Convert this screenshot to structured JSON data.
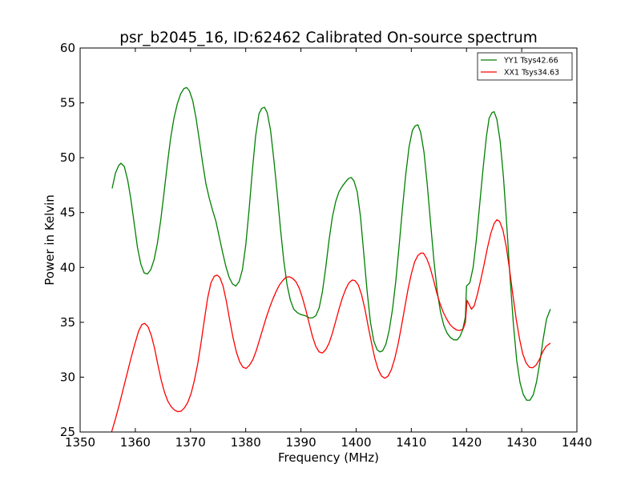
{
  "chart_data": {
    "type": "line",
    "title": "psr_b2045_16, ID:62462 Calibrated On-source spectrum",
    "xlabel": "Frequency (MHz)",
    "ylabel": "Power in Kelvin",
    "xlim": [
      1350,
      1440
    ],
    "ylim": [
      25,
      60
    ],
    "xticks": [
      1350,
      1360,
      1370,
      1380,
      1390,
      1400,
      1410,
      1420,
      1430,
      1440
    ],
    "yticks": [
      25,
      30,
      35,
      40,
      45,
      50,
      55,
      60
    ],
    "xtick_labels": [
      "1350",
      "1360",
      "1370",
      "1380",
      "1390",
      "1400",
      "1410",
      "1420",
      "1430",
      "1440"
    ],
    "ytick_labels": [
      "25",
      "30",
      "35",
      "40",
      "45",
      "50",
      "55",
      "60"
    ],
    "grid": false,
    "legend_position": "top-right",
    "series": [
      {
        "name": "YY1 Tsys42.66",
        "color": "#008000",
        "points": [
          [
            1355.8,
            47.2
          ],
          [
            1356.4,
            48.6
          ],
          [
            1357.0,
            49.3
          ],
          [
            1357.4,
            49.5
          ],
          [
            1358.0,
            49.2
          ],
          [
            1358.6,
            48.0
          ],
          [
            1359.2,
            46.2
          ],
          [
            1359.8,
            44.0
          ],
          [
            1360.4,
            41.8
          ],
          [
            1361.0,
            40.3
          ],
          [
            1361.6,
            39.5
          ],
          [
            1362.2,
            39.4
          ],
          [
            1362.8,
            39.8
          ],
          [
            1363.4,
            40.7
          ],
          [
            1364.0,
            42.2
          ],
          [
            1364.6,
            44.3
          ],
          [
            1365.2,
            46.8
          ],
          [
            1365.8,
            49.4
          ],
          [
            1366.4,
            51.8
          ],
          [
            1367.0,
            53.6
          ],
          [
            1367.6,
            54.9
          ],
          [
            1368.2,
            55.8
          ],
          [
            1368.8,
            56.3
          ],
          [
            1369.3,
            56.4
          ],
          [
            1369.8,
            56.1
          ],
          [
            1370.4,
            55.2
          ],
          [
            1371.0,
            53.6
          ],
          [
            1371.6,
            51.6
          ],
          [
            1372.2,
            49.5
          ],
          [
            1372.8,
            47.6
          ],
          [
            1373.4,
            46.3
          ],
          [
            1374.0,
            45.2
          ],
          [
            1374.6,
            44.2
          ],
          [
            1375.2,
            42.8
          ],
          [
            1375.8,
            41.4
          ],
          [
            1376.4,
            40.1
          ],
          [
            1377.0,
            39.1
          ],
          [
            1377.6,
            38.5
          ],
          [
            1378.2,
            38.3
          ],
          [
            1378.8,
            38.7
          ],
          [
            1379.4,
            39.8
          ],
          [
            1380.0,
            42.0
          ],
          [
            1380.6,
            45.2
          ],
          [
            1381.2,
            48.8
          ],
          [
            1381.8,
            52.0
          ],
          [
            1382.4,
            54.0
          ],
          [
            1382.9,
            54.5
          ],
          [
            1383.4,
            54.6
          ],
          [
            1383.9,
            54.1
          ],
          [
            1384.5,
            52.5
          ],
          [
            1385.1,
            49.8
          ],
          [
            1385.7,
            46.8
          ],
          [
            1386.3,
            43.5
          ],
          [
            1386.9,
            40.6
          ],
          [
            1387.5,
            38.4
          ],
          [
            1388.1,
            37.0
          ],
          [
            1388.7,
            36.2
          ],
          [
            1389.3,
            35.9
          ],
          [
            1390.0,
            35.7
          ],
          [
            1390.8,
            35.6
          ],
          [
            1391.5,
            35.4
          ],
          [
            1392.1,
            35.4
          ],
          [
            1392.7,
            35.6
          ],
          [
            1393.3,
            36.3
          ],
          [
            1393.9,
            37.8
          ],
          [
            1394.5,
            40.0
          ],
          [
            1395.1,
            42.5
          ],
          [
            1395.7,
            44.6
          ],
          [
            1396.3,
            46.0
          ],
          [
            1396.9,
            46.9
          ],
          [
            1397.5,
            47.4
          ],
          [
            1398.1,
            47.8
          ],
          [
            1398.6,
            48.1
          ],
          [
            1399.1,
            48.2
          ],
          [
            1399.6,
            47.9
          ],
          [
            1400.2,
            46.9
          ],
          [
            1400.8,
            44.6
          ],
          [
            1401.4,
            41.2
          ],
          [
            1402.0,
            37.8
          ],
          [
            1402.6,
            35.0
          ],
          [
            1403.2,
            33.3
          ],
          [
            1403.8,
            32.5
          ],
          [
            1404.3,
            32.3
          ],
          [
            1404.8,
            32.4
          ],
          [
            1405.4,
            33.0
          ],
          [
            1406.0,
            34.3
          ],
          [
            1406.6,
            36.2
          ],
          [
            1407.2,
            38.8
          ],
          [
            1407.8,
            42.0
          ],
          [
            1408.4,
            45.4
          ],
          [
            1409.0,
            48.5
          ],
          [
            1409.6,
            51.0
          ],
          [
            1410.2,
            52.5
          ],
          [
            1410.7,
            52.9
          ],
          [
            1411.2,
            53.0
          ],
          [
            1411.7,
            52.3
          ],
          [
            1412.3,
            50.5
          ],
          [
            1412.9,
            47.5
          ],
          [
            1413.5,
            44.0
          ],
          [
            1414.1,
            40.6
          ],
          [
            1414.7,
            37.8
          ],
          [
            1415.3,
            35.9
          ],
          [
            1415.9,
            34.7
          ],
          [
            1416.5,
            34.0
          ],
          [
            1417.1,
            33.6
          ],
          [
            1417.7,
            33.4
          ],
          [
            1418.3,
            33.4
          ],
          [
            1418.8,
            33.7
          ],
          [
            1419.3,
            34.3
          ],
          [
            1419.8,
            35.5
          ],
          [
            1420.0,
            38.3
          ],
          [
            1420.6,
            38.6
          ],
          [
            1421.2,
            40.0
          ],
          [
            1421.8,
            42.6
          ],
          [
            1422.4,
            45.8
          ],
          [
            1423.0,
            49.0
          ],
          [
            1423.6,
            51.9
          ],
          [
            1424.1,
            53.6
          ],
          [
            1424.6,
            54.1
          ],
          [
            1425.0,
            54.2
          ],
          [
            1425.5,
            53.5
          ],
          [
            1426.1,
            51.5
          ],
          [
            1426.7,
            48.2
          ],
          [
            1427.3,
            43.8
          ],
          [
            1427.9,
            39.0
          ],
          [
            1428.5,
            34.8
          ],
          [
            1429.1,
            31.5
          ],
          [
            1429.7,
            29.5
          ],
          [
            1430.3,
            28.4
          ],
          [
            1430.9,
            27.9
          ],
          [
            1431.5,
            27.9
          ],
          [
            1432.1,
            28.4
          ],
          [
            1432.7,
            29.6
          ],
          [
            1433.3,
            31.4
          ],
          [
            1433.9,
            33.5
          ],
          [
            1434.5,
            35.3
          ],
          [
            1435.2,
            36.2
          ]
        ]
      },
      {
        "name": "XX1 Tsys34.63",
        "color": "#ff0000",
        "points": [
          [
            1355.7,
            25.0
          ],
          [
            1356.4,
            26.2
          ],
          [
            1357.1,
            27.5
          ],
          [
            1357.8,
            28.9
          ],
          [
            1358.5,
            30.3
          ],
          [
            1359.2,
            31.7
          ],
          [
            1359.9,
            33.0
          ],
          [
            1360.6,
            34.2
          ],
          [
            1361.2,
            34.8
          ],
          [
            1361.7,
            34.9
          ],
          [
            1362.3,
            34.6
          ],
          [
            1362.9,
            33.8
          ],
          [
            1363.5,
            32.6
          ],
          [
            1364.1,
            31.1
          ],
          [
            1364.7,
            29.7
          ],
          [
            1365.3,
            28.6
          ],
          [
            1365.9,
            27.8
          ],
          [
            1366.5,
            27.3
          ],
          [
            1367.1,
            27.0
          ],
          [
            1367.7,
            26.85
          ],
          [
            1368.3,
            26.9
          ],
          [
            1368.9,
            27.2
          ],
          [
            1369.5,
            27.7
          ],
          [
            1370.1,
            28.5
          ],
          [
            1370.7,
            29.7
          ],
          [
            1371.3,
            31.2
          ],
          [
            1371.9,
            33.1
          ],
          [
            1372.5,
            35.2
          ],
          [
            1373.1,
            37.2
          ],
          [
            1373.7,
            38.6
          ],
          [
            1374.3,
            39.2
          ],
          [
            1374.8,
            39.3
          ],
          [
            1375.3,
            39.1
          ],
          [
            1375.9,
            38.3
          ],
          [
            1376.5,
            36.9
          ],
          [
            1377.1,
            35.2
          ],
          [
            1377.7,
            33.6
          ],
          [
            1378.3,
            32.3
          ],
          [
            1378.9,
            31.4
          ],
          [
            1379.5,
            30.9
          ],
          [
            1380.1,
            30.8
          ],
          [
            1380.7,
            31.1
          ],
          [
            1381.3,
            31.6
          ],
          [
            1381.9,
            32.4
          ],
          [
            1382.5,
            33.4
          ],
          [
            1383.1,
            34.4
          ],
          [
            1383.7,
            35.4
          ],
          [
            1384.3,
            36.3
          ],
          [
            1384.9,
            37.1
          ],
          [
            1385.5,
            37.8
          ],
          [
            1386.1,
            38.4
          ],
          [
            1386.7,
            38.8
          ],
          [
            1387.3,
            39.1
          ],
          [
            1387.9,
            39.15
          ],
          [
            1388.5,
            39.0
          ],
          [
            1389.1,
            38.7
          ],
          [
            1389.7,
            38.1
          ],
          [
            1390.3,
            37.2
          ],
          [
            1390.9,
            36.1
          ],
          [
            1391.5,
            34.9
          ],
          [
            1392.1,
            33.7
          ],
          [
            1392.7,
            32.8
          ],
          [
            1393.3,
            32.3
          ],
          [
            1393.9,
            32.2
          ],
          [
            1394.5,
            32.5
          ],
          [
            1395.1,
            33.1
          ],
          [
            1395.7,
            34.0
          ],
          [
            1396.3,
            35.1
          ],
          [
            1396.9,
            36.2
          ],
          [
            1397.5,
            37.2
          ],
          [
            1398.1,
            38.0
          ],
          [
            1398.7,
            38.6
          ],
          [
            1399.3,
            38.85
          ],
          [
            1399.8,
            38.8
          ],
          [
            1400.4,
            38.4
          ],
          [
            1401.0,
            37.5
          ],
          [
            1401.6,
            36.2
          ],
          [
            1402.2,
            34.6
          ],
          [
            1402.8,
            33.1
          ],
          [
            1403.4,
            31.7
          ],
          [
            1404.0,
            30.7
          ],
          [
            1404.6,
            30.1
          ],
          [
            1405.2,
            29.9
          ],
          [
            1405.8,
            30.1
          ],
          [
            1406.4,
            30.7
          ],
          [
            1407.0,
            31.7
          ],
          [
            1407.6,
            33.0
          ],
          [
            1408.2,
            34.6
          ],
          [
            1408.8,
            36.3
          ],
          [
            1409.4,
            38.0
          ],
          [
            1410.0,
            39.4
          ],
          [
            1410.6,
            40.5
          ],
          [
            1411.2,
            41.1
          ],
          [
            1411.7,
            41.3
          ],
          [
            1412.2,
            41.3
          ],
          [
            1412.8,
            40.8
          ],
          [
            1413.4,
            40.0
          ],
          [
            1414.0,
            38.9
          ],
          [
            1414.6,
            37.7
          ],
          [
            1415.2,
            36.7
          ],
          [
            1415.8,
            35.9
          ],
          [
            1416.4,
            35.3
          ],
          [
            1417.0,
            34.8
          ],
          [
            1417.6,
            34.5
          ],
          [
            1418.2,
            34.3
          ],
          [
            1418.8,
            34.25
          ],
          [
            1419.4,
            34.4
          ],
          [
            1419.8,
            35.0
          ],
          [
            1420.1,
            37.0
          ],
          [
            1420.5,
            36.6
          ],
          [
            1420.9,
            36.2
          ],
          [
            1421.4,
            36.5
          ],
          [
            1422.0,
            37.6
          ],
          [
            1422.6,
            38.9
          ],
          [
            1423.2,
            40.3
          ],
          [
            1423.8,
            41.8
          ],
          [
            1424.4,
            43.1
          ],
          [
            1425.0,
            44.0
          ],
          [
            1425.5,
            44.35
          ],
          [
            1426.0,
            44.2
          ],
          [
            1426.6,
            43.4
          ],
          [
            1427.2,
            41.9
          ],
          [
            1427.8,
            39.8
          ],
          [
            1428.4,
            37.5
          ],
          [
            1429.0,
            35.3
          ],
          [
            1429.6,
            33.5
          ],
          [
            1430.2,
            32.1
          ],
          [
            1430.8,
            31.3
          ],
          [
            1431.4,
            30.9
          ],
          [
            1432.0,
            30.85
          ],
          [
            1432.6,
            31.1
          ],
          [
            1433.2,
            31.6
          ],
          [
            1433.8,
            32.3
          ],
          [
            1434.4,
            32.8
          ],
          [
            1435.2,
            33.1
          ]
        ]
      }
    ]
  }
}
